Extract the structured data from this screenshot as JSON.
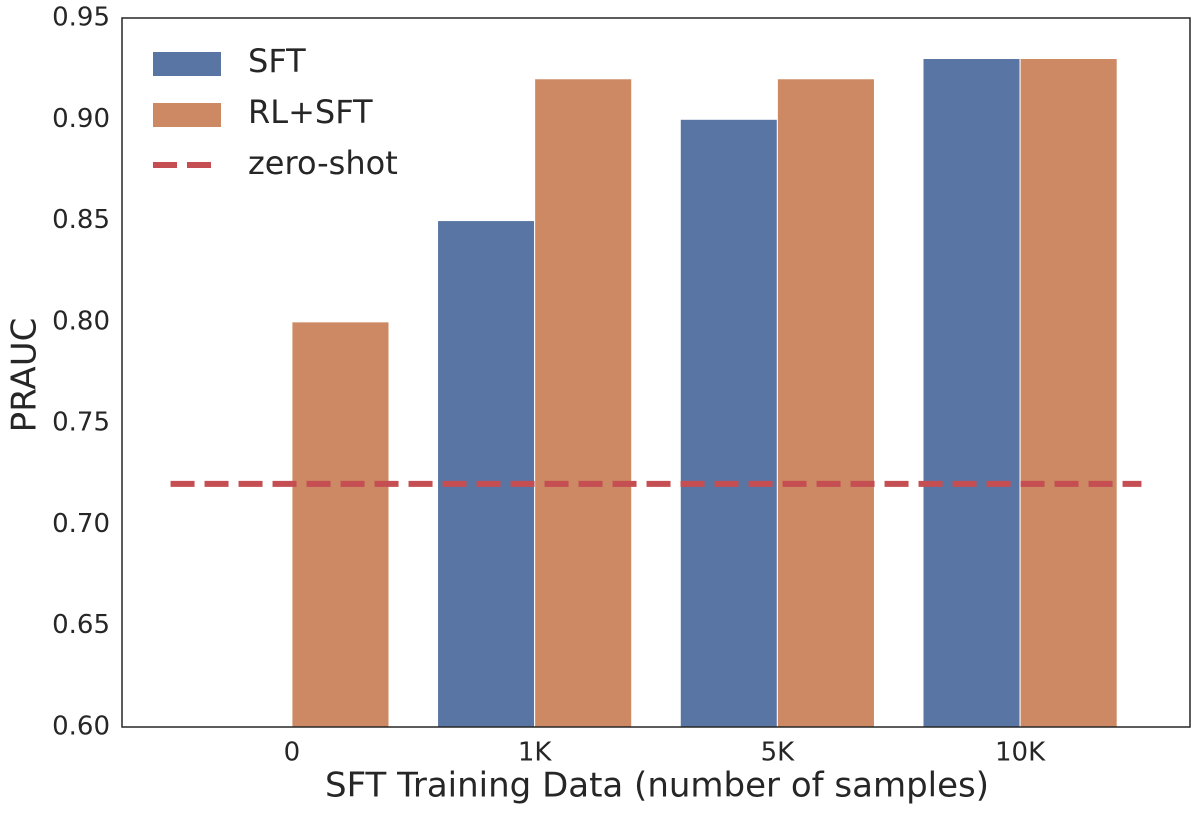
{
  "chart_data": {
    "type": "bar",
    "x_label": "SFT Training Data (number of samples)",
    "y_label": "PRAUC",
    "categories": [
      "0",
      "1K",
      "5K",
      "10K"
    ],
    "series": [
      {
        "name": "SFT",
        "color": "#5975a4",
        "values": [
          null,
          0.85,
          0.9,
          0.93
        ]
      },
      {
        "name": "RL+SFT",
        "color": "#cc8963",
        "values": [
          0.8,
          0.92,
          0.92,
          0.93
        ]
      }
    ],
    "reference_line": {
      "name": "zero-shot",
      "color": "#c44e52",
      "value": 0.72
    },
    "ylim": [
      0.6,
      0.95
    ],
    "yticks": [
      {
        "value": 0.6,
        "label": "0.60"
      },
      0.65,
      {
        "value": 0.7,
        "label": "0.70"
      },
      0.75,
      {
        "value": 0.8,
        "label": "0.80"
      },
      0.85,
      {
        "value": 0.9,
        "label": "0.90"
      },
      0.95
    ],
    "grid": false,
    "legend": "upper left"
  }
}
